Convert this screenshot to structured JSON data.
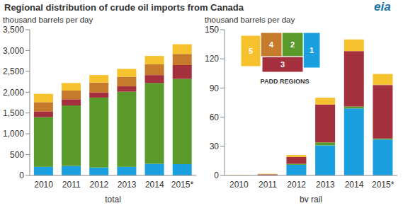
{
  "title": "Regional distribution  of crude oil imports from Canada",
  "logo": "eia",
  "inset_title": "PADD REGIONS",
  "chart_data": [
    {
      "type": "bar",
      "stacked": true,
      "grid": false,
      "y_label": "thousand barrels per day",
      "x_label": "total",
      "categories": [
        "2010",
        "2011",
        "2012",
        "2013",
        "2014",
        "2015*"
      ],
      "ylim": [
        0,
        3500
      ],
      "yticks": [
        0,
        500,
        {
          "value": 1000,
          "label": "1,000"
        },
        {
          "value": 1500,
          "label": "1,500"
        },
        {
          "value": 2000,
          "label": "2,000"
        },
        {
          "value": 2500,
          "label": "2,500"
        },
        {
          "value": 3000,
          "label": "3,000"
        },
        {
          "value": 3500,
          "label": "3,500"
        }
      ],
      "series": [
        {
          "name": "1",
          "color": "#1aa0e0",
          "values": [
            210,
            230,
            190,
            210,
            280,
            270
          ]
        },
        {
          "name": "2",
          "color": "#5a9a2a",
          "values": [
            1190,
            1450,
            1680,
            1800,
            1940,
            2050
          ]
        },
        {
          "name": "3",
          "color": "#a3303c",
          "values": [
            140,
            150,
            120,
            130,
            190,
            330
          ]
        },
        {
          "name": "4",
          "color": "#c67a2c",
          "values": [
            220,
            210,
            240,
            230,
            260,
            270
          ]
        },
        {
          "name": "5",
          "color": "#f5c12c",
          "values": [
            200,
            180,
            180,
            190,
            200,
            230
          ]
        }
      ]
    },
    {
      "type": "bar",
      "stacked": true,
      "grid": false,
      "y_label": "thousand barrels per day",
      "x_label": "by rail",
      "categories": [
        "2010",
        "2011",
        "2012",
        "2013",
        "2014",
        "2015*"
      ],
      "ylim": [
        0,
        150
      ],
      "yticks": [
        0,
        30,
        60,
        90,
        120,
        150
      ],
      "series": [
        {
          "name": "1",
          "color": "#1aa0e0",
          "values": [
            0,
            0.2,
            11,
            31,
            69,
            37
          ]
        },
        {
          "name": "2",
          "color": "#5a9a2a",
          "values": [
            0,
            0,
            1,
            3,
            2,
            1
          ]
        },
        {
          "name": "3",
          "color": "#a3303c",
          "values": [
            0,
            1,
            7,
            39,
            57,
            55
          ]
        },
        {
          "name": "4",
          "color": "#c67a2c",
          "values": [
            0,
            0,
            0,
            0,
            0,
            0.5
          ]
        },
        {
          "name": "5",
          "color": "#f5c12c",
          "values": [
            0.3,
            0.5,
            2,
            7,
            12,
            11
          ]
        }
      ]
    }
  ]
}
